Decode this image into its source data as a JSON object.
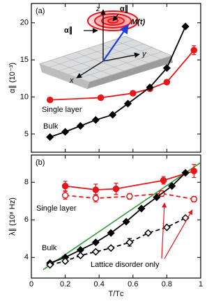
{
  "chart_data": [
    {
      "type": "line",
      "panel_label": "(a)",
      "ylabel": "α∥ (10⁻³)",
      "xlim": [
        0,
        1
      ],
      "xticks": [
        0,
        0.2,
        0.4,
        0.6,
        0.8,
        1
      ],
      "ylim": [
        2.55,
        22.6
      ],
      "yticks": [
        5,
        10,
        15,
        20
      ],
      "series": [
        {
          "name": "Single layer",
          "color": "#e8151b",
          "marker": "circle",
          "filled": true,
          "dashed": false,
          "x": [
            0.11,
            0.41,
            0.6,
            0.7,
            0.8,
            0.96
          ],
          "values": [
            9.6,
            9.9,
            10.5,
            11.1,
            12.0,
            16.3
          ],
          "errors": [
            0.3,
            0.3,
            0.3,
            0.3,
            0.3,
            0.6
          ]
        },
        {
          "name": "Bulk",
          "color": "#000000",
          "marker": "diamond",
          "filled": true,
          "dashed": false,
          "x": [
            0.11,
            0.2,
            0.29,
            0.38,
            0.48,
            0.57,
            0.7,
            0.8,
            0.91
          ],
          "values": [
            4.6,
            5.3,
            6.1,
            6.9,
            7.6,
            9.1,
            11.3,
            13.9,
            19.5
          ]
        }
      ],
      "inset_labels": [
        "α∥",
        "α∥",
        "z",
        "y",
        "x",
        "M(t)"
      ]
    },
    {
      "type": "line",
      "panel_label": "(b)",
      "ylabel": "λ∥ (10⁸ Hz)",
      "xlabel": "T/Tᴄ",
      "xlim": [
        0,
        1
      ],
      "xticks": [
        0,
        0.2,
        0.4,
        0.6,
        0.8,
        1
      ],
      "ylim": [
        2.9,
        9.45
      ],
      "yticks": [
        4,
        6,
        8
      ],
      "series": [
        {
          "color": "#2e9a2e",
          "marker": "none",
          "filled": false,
          "dashed": false,
          "x": [
            0.07,
            1.0
          ],
          "values": [
            3.35,
            9.05
          ]
        },
        {
          "name": "Single layer",
          "color": "#e8151b",
          "marker": "circle",
          "filled": true,
          "dashed": false,
          "x": [
            0.2,
            0.38,
            0.5,
            0.78,
            0.96
          ],
          "values": [
            7.8,
            7.6,
            7.65,
            8.1,
            8.6
          ],
          "errors": [
            0.25,
            0.3,
            0.3,
            0.2,
            0.35
          ]
        },
        {
          "color": "#e8151b",
          "marker": "circle",
          "filled": false,
          "dashed": true,
          "x": [
            0.2,
            0.38,
            0.58,
            0.77,
            0.96
          ],
          "values": [
            7.3,
            7.15,
            7.25,
            7.4,
            7.1
          ],
          "errors": [
            0.2,
            0.2,
            0.15,
            0.15,
            0.15
          ]
        },
        {
          "name": "Bulk",
          "color": "#000000",
          "marker": "diamond",
          "filled": true,
          "dashed": false,
          "x": [
            0.11,
            0.2,
            0.29,
            0.38,
            0.47,
            0.56,
            0.65,
            0.74,
            0.83,
            0.91
          ],
          "values": [
            3.7,
            4.0,
            4.4,
            4.8,
            5.3,
            5.9,
            6.6,
            7.2,
            7.8,
            8.5
          ]
        },
        {
          "name": "Lattice disorder only",
          "color": "#000000",
          "marker": "diamond",
          "filled": false,
          "dashed": true,
          "x": [
            0.11,
            0.2,
            0.29,
            0.38,
            0.47,
            0.58,
            0.69,
            0.8,
            0.91
          ],
          "values": [
            3.6,
            3.8,
            4.1,
            4.3,
            4.5,
            4.8,
            5.3,
            5.6,
            6.1
          ],
          "errors": [
            0,
            0,
            0,
            0,
            0,
            0.2,
            0,
            0,
            0
          ]
        }
      ]
    }
  ]
}
